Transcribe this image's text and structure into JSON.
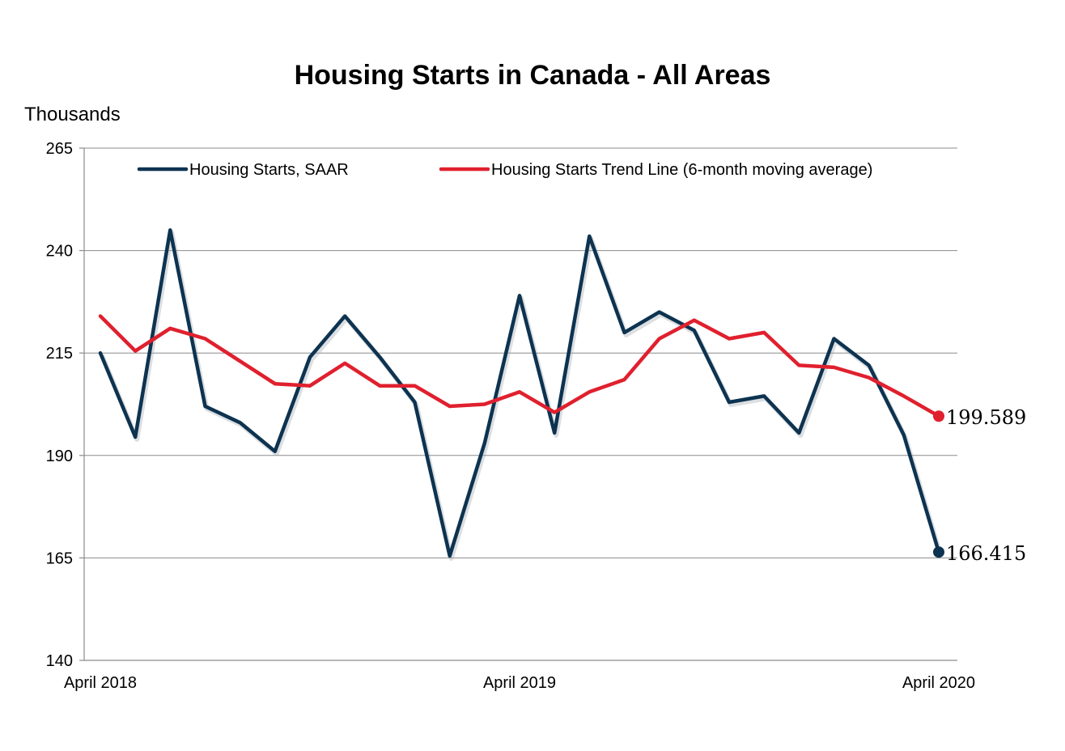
{
  "chart_data": {
    "type": "line",
    "title": "Housing Starts in Canada - All Areas",
    "ylabel": "Thousands",
    "xlabel": "",
    "ylim": [
      140,
      265
    ],
    "yticks": [
      140,
      165,
      190,
      215,
      240,
      265
    ],
    "x": [
      "Apr 2018",
      "May 2018",
      "Jun 2018",
      "Jul 2018",
      "Aug 2018",
      "Sep 2018",
      "Oct 2018",
      "Nov 2018",
      "Dec 2018",
      "Jan 2019",
      "Feb 2019",
      "Mar 2019",
      "Apr 2019",
      "May 2019",
      "Jun 2019",
      "Jul 2019",
      "Aug 2019",
      "Sep 2019",
      "Oct 2019",
      "Nov 2019",
      "Dec 2019",
      "Jan 2020",
      "Feb 2020",
      "Mar 2020",
      "Apr 2020"
    ],
    "xtick_labels": [
      {
        "index": 0,
        "label": "April 2018"
      },
      {
        "index": 12,
        "label": "April 2019"
      },
      {
        "index": 24,
        "label": "April 2020"
      }
    ],
    "grid": true,
    "legend_position": "top",
    "series": [
      {
        "name": "Housing Starts, SAAR",
        "color": "#0d3350",
        "values": [
          215,
          194.5,
          245,
          202,
          198,
          191,
          214,
          224,
          214,
          203,
          165.5,
          193,
          229,
          195.5,
          243.5,
          220,
          225,
          220.5,
          203,
          204.5,
          195.5,
          218.5,
          212,
          195,
          166.415
        ],
        "end_label": "166.415"
      },
      {
        "name": "Housing Starts Trend Line (6-month moving average)",
        "color": "#e0202e",
        "values": [
          224,
          215.5,
          221,
          218.5,
          213,
          207.5,
          207,
          212.5,
          207,
          207,
          202,
          202.5,
          205.5,
          200.5,
          205.5,
          208.5,
          218.5,
          223,
          218.5,
          220,
          212,
          211.5,
          209,
          204.5,
          199.589
        ],
        "end_label": "199.589"
      }
    ]
  }
}
